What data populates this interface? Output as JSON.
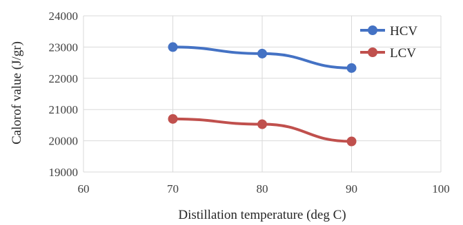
{
  "chart_data": {
    "type": "line",
    "xlabel": "Distillation temperature (deg C)",
    "ylabel": "Calorof value (J/gr)",
    "xlim": [
      60,
      100
    ],
    "ylim": [
      19000,
      24000
    ],
    "xticks": [
      60,
      70,
      80,
      90,
      100
    ],
    "yticks": [
      19000,
      20000,
      21000,
      22000,
      23000,
      24000
    ],
    "grid": true,
    "legend": "top-right",
    "series": [
      {
        "name": "HCV",
        "color": "#4472c4",
        "x": [
          70,
          80,
          90
        ],
        "y": [
          23000,
          22790,
          22330
        ]
      },
      {
        "name": "LCV",
        "color": "#c0504d",
        "x": [
          70,
          80,
          90
        ],
        "y": [
          20700,
          20530,
          19980
        ]
      }
    ]
  }
}
